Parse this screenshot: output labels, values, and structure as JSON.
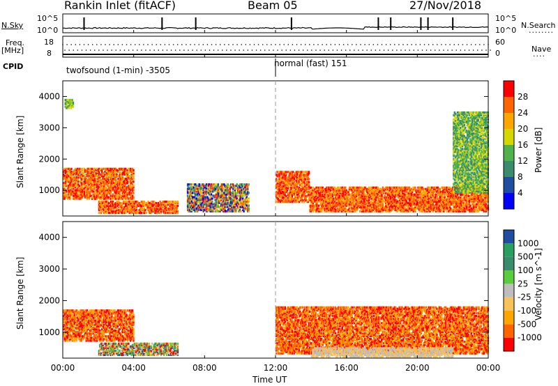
{
  "header": {
    "title": "Rankin Inlet (fitACF)",
    "beam": "Beam 05",
    "date": "27/Nov/2018"
  },
  "strip_labels": {
    "nsky": "N.Sky",
    "nsky_top": "10^5",
    "nsky_bottom": "10^0",
    "nsearch": "N.Search",
    "nsearch_ticks_top": "10^5",
    "nsearch_ticks_bottom": "10^0",
    "freq_line1": "Freq.",
    "freq_line2": "[MHz]",
    "freq_top": "18",
    "freq_bottom": "8",
    "nave": "Nave",
    "nave_top": "60",
    "nave_bottom": "0",
    "cpid": "CPID",
    "cpid_segment_1": "twofsound (1-min) -3505",
    "cpid_segment_2": "normal (fast) 151"
  },
  "x_axis": {
    "label": "Time UT",
    "ticks": [
      "00:00",
      "04:00",
      "08:00",
      "12:00",
      "16:00",
      "20:00",
      "00:00"
    ]
  },
  "colors": {
    "power_scale": [
      "#0000ff",
      "#1f4ea0",
      "#3a8c6c",
      "#4fb24b",
      "#d6d600",
      "#ffa500",
      "#ff6400",
      "#ff0000"
    ],
    "velocity_scale": [
      "#ff0000",
      "#ff6400",
      "#ffa500",
      "#f8c25a",
      "#bebebe",
      "#5acd3c",
      "#3a8c6c",
      "#2aa060",
      "#1f4ea0"
    ]
  },
  "chart_data": [
    {
      "type": "heatmap",
      "title": "Power",
      "xlabel": "Time UT",
      "ylabel": "Slant Range [km]",
      "xlim": [
        0,
        24
      ],
      "ylim": [
        180,
        4500
      ],
      "yticks": [
        1000,
        2000,
        3000,
        4000
      ],
      "colorbar": {
        "label": "Power [dB]",
        "ticks": [
          4,
          8,
          12,
          16,
          20,
          24,
          28
        ]
      },
      "echo_regions": [
        {
          "t0": 0.0,
          "t1": 4.0,
          "r0": 700,
          "r1": 1700,
          "level": "high"
        },
        {
          "t0": 2.0,
          "t1": 6.5,
          "r0": 250,
          "r1": 650,
          "level": "high"
        },
        {
          "t0": 7.0,
          "t1": 10.5,
          "r0": 300,
          "r1": 1200,
          "level": "mixed"
        },
        {
          "t0": 12.0,
          "t1": 13.9,
          "r0": 600,
          "r1": 1600,
          "level": "high"
        },
        {
          "t0": 13.9,
          "t1": 24.0,
          "r0": 300,
          "r1": 1100,
          "level": "high"
        },
        {
          "t0": 0.1,
          "t1": 0.6,
          "r0": 3600,
          "r1": 3900,
          "level": "medium"
        },
        {
          "t0": 22.0,
          "t1": 24.0,
          "r0": 900,
          "r1": 3500,
          "level": "medium"
        }
      ]
    },
    {
      "type": "heatmap",
      "title": "Velocity",
      "xlabel": "Time UT",
      "ylabel": "Slant Range [km]",
      "xlim": [
        0,
        24
      ],
      "ylim": [
        180,
        4500
      ],
      "yticks": [
        1000,
        2000,
        3000,
        4000
      ],
      "colorbar": {
        "label": "Velocity [m s^-1]",
        "ticks": [
          -1000,
          -500,
          -100,
          -25,
          25,
          100,
          500,
          1000
        ]
      },
      "echo_regions": [
        {
          "t0": 0.0,
          "t1": 4.0,
          "r0": 700,
          "r1": 1700,
          "level": "negative"
        },
        {
          "t0": 2.0,
          "t1": 6.5,
          "r0": 250,
          "r1": 650,
          "level": "mixed"
        },
        {
          "t0": 12.0,
          "t1": 24.0,
          "r0": 300,
          "r1": 1800,
          "level": "negative"
        },
        {
          "t0": 14.0,
          "t1": 22.0,
          "r0": 200,
          "r1": 500,
          "level": "near-zero"
        }
      ]
    }
  ]
}
